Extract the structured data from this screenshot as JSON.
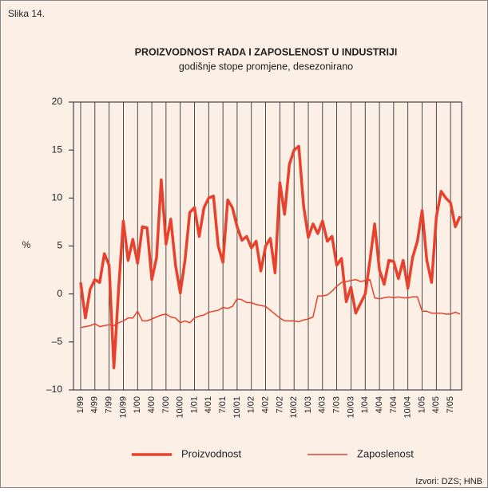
{
  "figure_label": "Slika 14.",
  "source": "Izvori: DZS; HNB",
  "chart_data": {
    "type": "line",
    "title": "PROIZVODNOST RADA I ZAPOSLENOST U INDUSTRIJI",
    "subtitle": "godišnje stope promjene, desezonirano",
    "y_label": "%",
    "categories": [
      "1/99",
      null,
      null,
      "4/99",
      null,
      null,
      "7/99",
      null,
      null,
      "10/99",
      null,
      null,
      "1/00",
      null,
      null,
      "4/00",
      null,
      null,
      "7/00",
      null,
      null,
      "10/00",
      null,
      null,
      "1/01",
      null,
      null,
      "4/01",
      null,
      null,
      "7/01",
      null,
      null,
      "10/01",
      null,
      null,
      "1/02",
      null,
      null,
      "4/02",
      null,
      null,
      "7/02",
      null,
      null,
      "10/02",
      null,
      null,
      "1/03",
      null,
      null,
      "4/03",
      null,
      null,
      "7/03",
      null,
      null,
      "10/03",
      null,
      null,
      "1/04",
      null,
      null,
      "4/04",
      null,
      null,
      "7/04",
      null,
      null,
      "10/04",
      null,
      null,
      "1/05",
      null,
      null,
      "4/05",
      null,
      null,
      "7/05",
      null,
      null
    ],
    "series": [
      {
        "name": "Proizvodnost",
        "color": "#e8412c",
        "line_width": 3.5,
        "values": [
          1.2,
          -2.5,
          0.5,
          1.5,
          1.2,
          4.2,
          3.0,
          -7.7,
          0.5,
          7.6,
          3.5,
          5.7,
          3.2,
          7.0,
          6.9,
          1.5,
          3.8,
          11.9,
          5.2,
          7.8,
          3.0,
          0.1,
          3.5,
          8.5,
          9.0,
          6.0,
          9.0,
          10.0,
          10.2,
          5.0,
          3.3,
          9.8,
          9.0,
          7.0,
          5.6,
          6.0,
          4.8,
          5.5,
          2.4,
          5.0,
          5.8,
          2.2,
          11.6,
          8.3,
          13.5,
          15.0,
          15.4,
          9.2,
          5.9,
          7.3,
          6.3,
          7.6,
          5.5,
          6.0,
          3.0,
          3.7,
          -0.8,
          0.7,
          -2.0,
          -1.0,
          0.0,
          3.5,
          7.3,
          2.5,
          1.0,
          3.5,
          3.4,
          1.6,
          3.5,
          0.6,
          3.8,
          5.5,
          8.7,
          3.5,
          1.2,
          8.0,
          10.7,
          10.0,
          9.5,
          7.0,
          8.1
        ]
      },
      {
        "name": "Zaposlenost",
        "color": "#e8412c",
        "line_width": 1.5,
        "values": [
          -3.5,
          -3.4,
          -3.3,
          -3.1,
          -3.4,
          -3.3,
          -3.2,
          -3.3,
          -3.0,
          -2.8,
          -2.5,
          -2.5,
          -1.8,
          -2.8,
          -2.8,
          -2.6,
          -2.4,
          -2.2,
          -2.1,
          -2.4,
          -2.5,
          -3.0,
          -2.8,
          -3.0,
          -2.5,
          -2.3,
          -2.2,
          -1.9,
          -1.8,
          -1.7,
          -1.4,
          -1.5,
          -1.3,
          -0.5,
          -0.6,
          -0.9,
          -0.9,
          -1.1,
          -1.2,
          -1.3,
          -1.7,
          -2.1,
          -2.5,
          -2.8,
          -2.8,
          -2.8,
          -2.9,
          -2.7,
          -2.6,
          -2.4,
          -0.2,
          -0.2,
          -0.1,
          0.3,
          0.8,
          1.2,
          1.3,
          1.4,
          1.5,
          1.3,
          1.4,
          1.5,
          -0.4,
          -0.5,
          -0.4,
          -0.3,
          -0.4,
          -0.3,
          -0.4,
          -0.4,
          -0.3,
          -0.3,
          -1.8,
          -1.8,
          -2.0,
          -2.0,
          -2.0,
          -2.1,
          -2.1,
          -1.9,
          -2.1
        ]
      }
    ],
    "ylim": [
      -10,
      20
    ],
    "yticks": [
      {
        "value": -10,
        "label": "–10"
      },
      {
        "value": -5,
        "label": "–5"
      },
      0,
      5,
      10,
      15,
      20
    ],
    "grid": "x",
    "legend": "bottom"
  }
}
